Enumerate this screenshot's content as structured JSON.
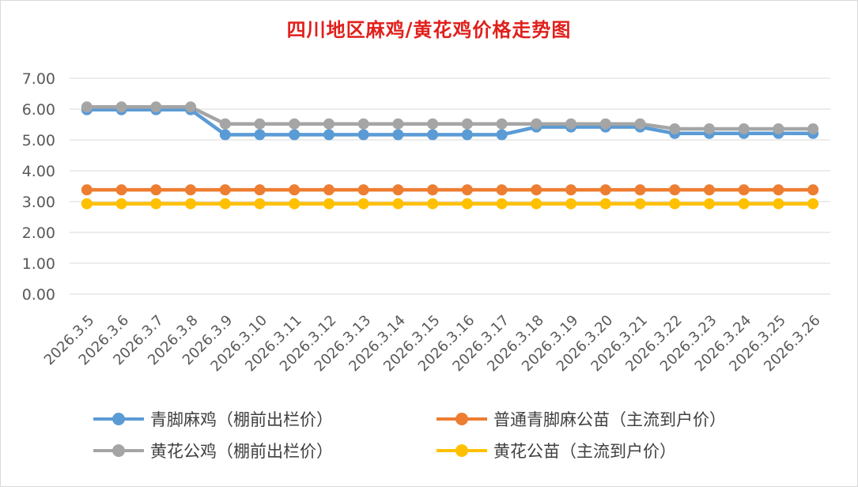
{
  "chart_data": {
    "type": "line",
    "title": "四川地区麻鸡/黄花鸡价格走势图",
    "xlabel": "",
    "ylabel": "",
    "ylim": [
      0,
      7
    ],
    "yticks": [
      "0.00",
      "1.00",
      "2.00",
      "3.00",
      "4.00",
      "5.00",
      "6.00",
      "7.00"
    ],
    "grid": true,
    "legend_position": "bottom",
    "categories": [
      "2026.3.5",
      "2026.3.6",
      "2026.3.7",
      "2026.3.8",
      "2026.3.9",
      "2026.3.10",
      "2026.3.11",
      "2026.3.12",
      "2026.3.13",
      "2026.3.14",
      "2026.3.15",
      "2026.3.16",
      "2026.3.17",
      "2026.3.18",
      "2026.3.19",
      "2026.3.20",
      "2026.3.21",
      "2026.3.22",
      "2026.3.23",
      "2026.3.24",
      "2026.3.25",
      "2026.3.26"
    ],
    "series": [
      {
        "name": "青脚麻鸡（棚前出栏价）",
        "color": "#5b9bd5",
        "values": [
          5.98,
          5.98,
          5.98,
          5.98,
          5.17,
          5.17,
          5.17,
          5.17,
          5.17,
          5.17,
          5.17,
          5.17,
          5.17,
          5.42,
          5.42,
          5.42,
          5.42,
          5.21,
          5.21,
          5.21,
          5.21,
          5.21
        ]
      },
      {
        "name": "普通青脚麻公苗（主流到户价）",
        "color": "#ed7d31",
        "values": [
          3.38,
          3.38,
          3.38,
          3.38,
          3.38,
          3.38,
          3.38,
          3.38,
          3.38,
          3.38,
          3.38,
          3.38,
          3.38,
          3.38,
          3.38,
          3.38,
          3.38,
          3.38,
          3.38,
          3.38,
          3.38,
          3.38
        ]
      },
      {
        "name": "黄花公鸡（棚前出栏价）",
        "color": "#a5a5a5",
        "values": [
          6.07,
          6.07,
          6.07,
          6.07,
          5.52,
          5.52,
          5.52,
          5.52,
          5.52,
          5.52,
          5.52,
          5.52,
          5.52,
          5.52,
          5.52,
          5.52,
          5.52,
          5.36,
          5.36,
          5.36,
          5.36,
          5.36
        ]
      },
      {
        "name": "黄花公苗（主流到户价）",
        "color": "#ffc000",
        "values": [
          2.93,
          2.93,
          2.93,
          2.93,
          2.93,
          2.93,
          2.93,
          2.93,
          2.93,
          2.93,
          2.93,
          2.93,
          2.93,
          2.93,
          2.93,
          2.93,
          2.93,
          2.93,
          2.93,
          2.93,
          2.93,
          2.93
        ]
      }
    ]
  }
}
